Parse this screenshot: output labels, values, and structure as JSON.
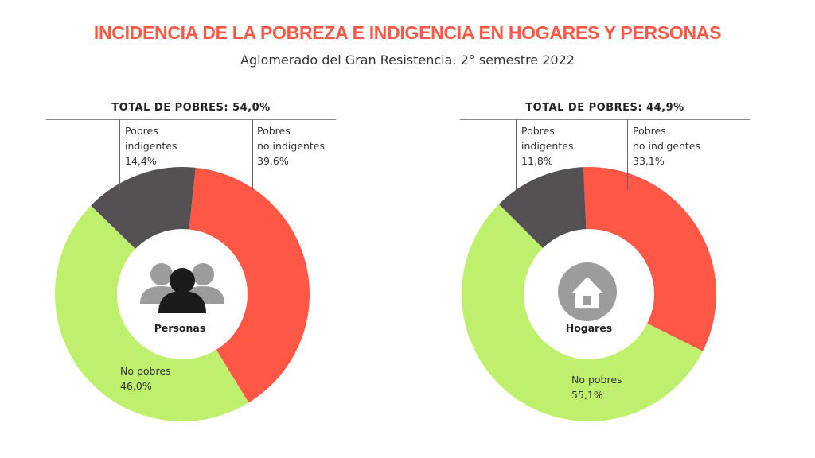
{
  "title": "INCIDENCIA DE LA POBREZA E INDIGENCIA EN HOGARES Y PERSONAS",
  "subtitle": "Aglomerado del Gran Resistencia. 2° semestre 2022",
  "chart_data": [
    {
      "type": "pie",
      "variant": "donut",
      "center_label": "Personas",
      "center_icon": "people-icon",
      "total_label": "TOTAL DE POBRES: 54,0%",
      "slices": [
        {
          "label_line1": "Pobres",
          "label_line2": "no indigentes",
          "value_label": "39,6%",
          "value": 39.6,
          "color": "#FF5745"
        },
        {
          "label_line1": "No pobres",
          "label_line2": "",
          "value_label": "46,0%",
          "value": 46.0,
          "color": "#BEF06E"
        },
        {
          "label_line1": "Pobres",
          "label_line2": "indigentes",
          "value_label": "14,4%",
          "value": 14.4,
          "color": "#545054"
        }
      ]
    },
    {
      "type": "pie",
      "variant": "donut",
      "center_label": "Hogares",
      "center_icon": "house-icon",
      "total_label": "TOTAL DE POBRES: 44,9%",
      "slices": [
        {
          "label_line1": "Pobres",
          "label_line2": "no indigentes",
          "value_label": "33,1%",
          "value": 33.1,
          "color": "#FF5745"
        },
        {
          "label_line1": "No pobres",
          "label_line2": "",
          "value_label": "55,1%",
          "value": 55.1,
          "color": "#BEF06E"
        },
        {
          "label_line1": "Pobres",
          "label_line2": "indigentes",
          "value_label": "11,8%",
          "value": 11.8,
          "color": "#545054"
        }
      ]
    }
  ]
}
